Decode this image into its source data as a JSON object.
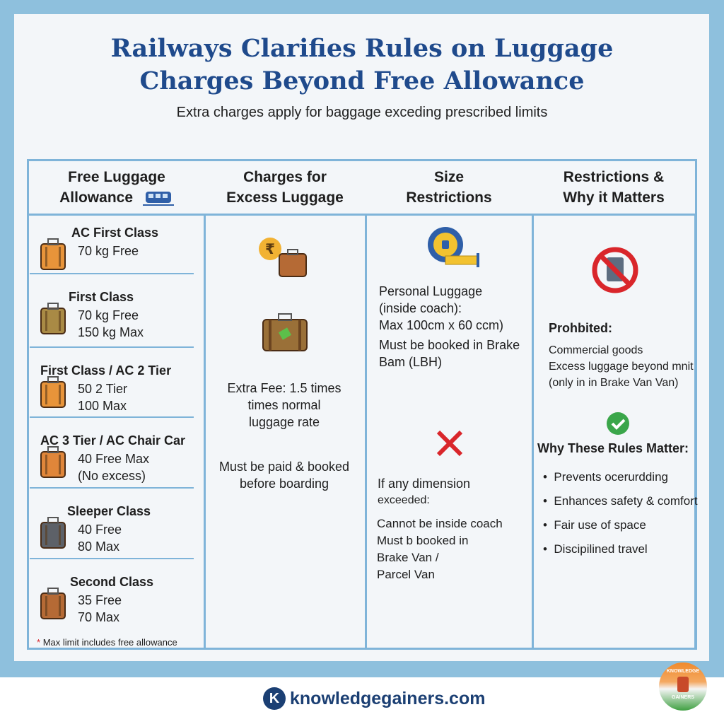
{
  "header": {
    "title_line1": "Railways Clarifies Rules on Luggage",
    "title_line2": "Charges Beyond Free Allowance",
    "subtitle": "Extra charges apply for baggage exceding prescribed limits"
  },
  "columns": [
    {
      "line1": "Free Luggage",
      "line2": "Allowance",
      "icon": "train-icon"
    },
    {
      "line1": "Charges for",
      "line2": "Excess Luggage"
    },
    {
      "line1": "Size",
      "line2": "Restrictions"
    },
    {
      "line1": "Restrictions &",
      "line2": "Why it Matters"
    }
  ],
  "allowance": [
    {
      "class": "AC First Class",
      "lines": [
        "70 kg Free"
      ],
      "color": "#e8943a"
    },
    {
      "class": "First Class",
      "lines": [
        "70 kg Free",
        "150 kg Max"
      ],
      "color": "#a98a45"
    },
    {
      "class": "First Class / AC 2 Tier",
      "lines": [
        "50 2 Tier",
        "100 Max"
      ],
      "color": "#e8943a"
    },
    {
      "class": "AC 3 Tier / AC Chair Car",
      "lines": [
        "40 Free Max",
        "(No excess)"
      ],
      "color": "#e0863a"
    },
    {
      "class": "Sleeper Class",
      "lines": [
        "40 Free",
        "80 Max"
      ],
      "color": "#5d6168"
    },
    {
      "class": "Second Class",
      "lines": [
        "35 Free",
        "70 Max"
      ],
      "color": "#b56a35"
    }
  ],
  "allowance_note": {
    "marker": "*",
    "text": "Max limit includes free allowance"
  },
  "charges": {
    "fee_lines": [
      "Extra Fee: 1.5 times",
      "times normal",
      "luggage rate"
    ],
    "payment_lines": [
      "Must be paid & booked",
      "before boarding"
    ],
    "icons": [
      "rupee-coin-icon",
      "suitcase-icon"
    ]
  },
  "size": {
    "personal_lines": [
      "Personal Luggage",
      "(inside coach):",
      "Max 100cm x 60 ccm)"
    ],
    "brake_lines": [
      "Must be booked in Brake",
      "Bam (LBH)"
    ],
    "exceeded_lines": [
      "If any dimension",
      "exceeded:"
    ],
    "consequence_lines": [
      "Cannot be inside coach",
      "Must b booked in",
      "Brake Van /",
      "Parcel Van"
    ]
  },
  "restrictions": {
    "prohibited_label": "Prohbited:",
    "prohibited_lines": [
      "Commercial goods",
      "Excess luggage beyond mnit",
      "(only in in Brake Van Van)"
    ],
    "why_label": "Why These Rules Matter:",
    "reasons": [
      "Prevents ocerurdding",
      "Enhances safety & comfort",
      "Fair use of space",
      "Discipilined travel"
    ]
  },
  "footer": {
    "logo_letter": "K",
    "website": "knowledgegainers.com",
    "badge_top": "KNOWLEDGE",
    "badge_bottom": "GAINERS"
  },
  "colors": {
    "title": "#1f4a8c",
    "border": "#7fb4d9",
    "background": "#8ec0dd",
    "prohibited_red": "#d9262b",
    "check_green": "#3aa64a"
  }
}
